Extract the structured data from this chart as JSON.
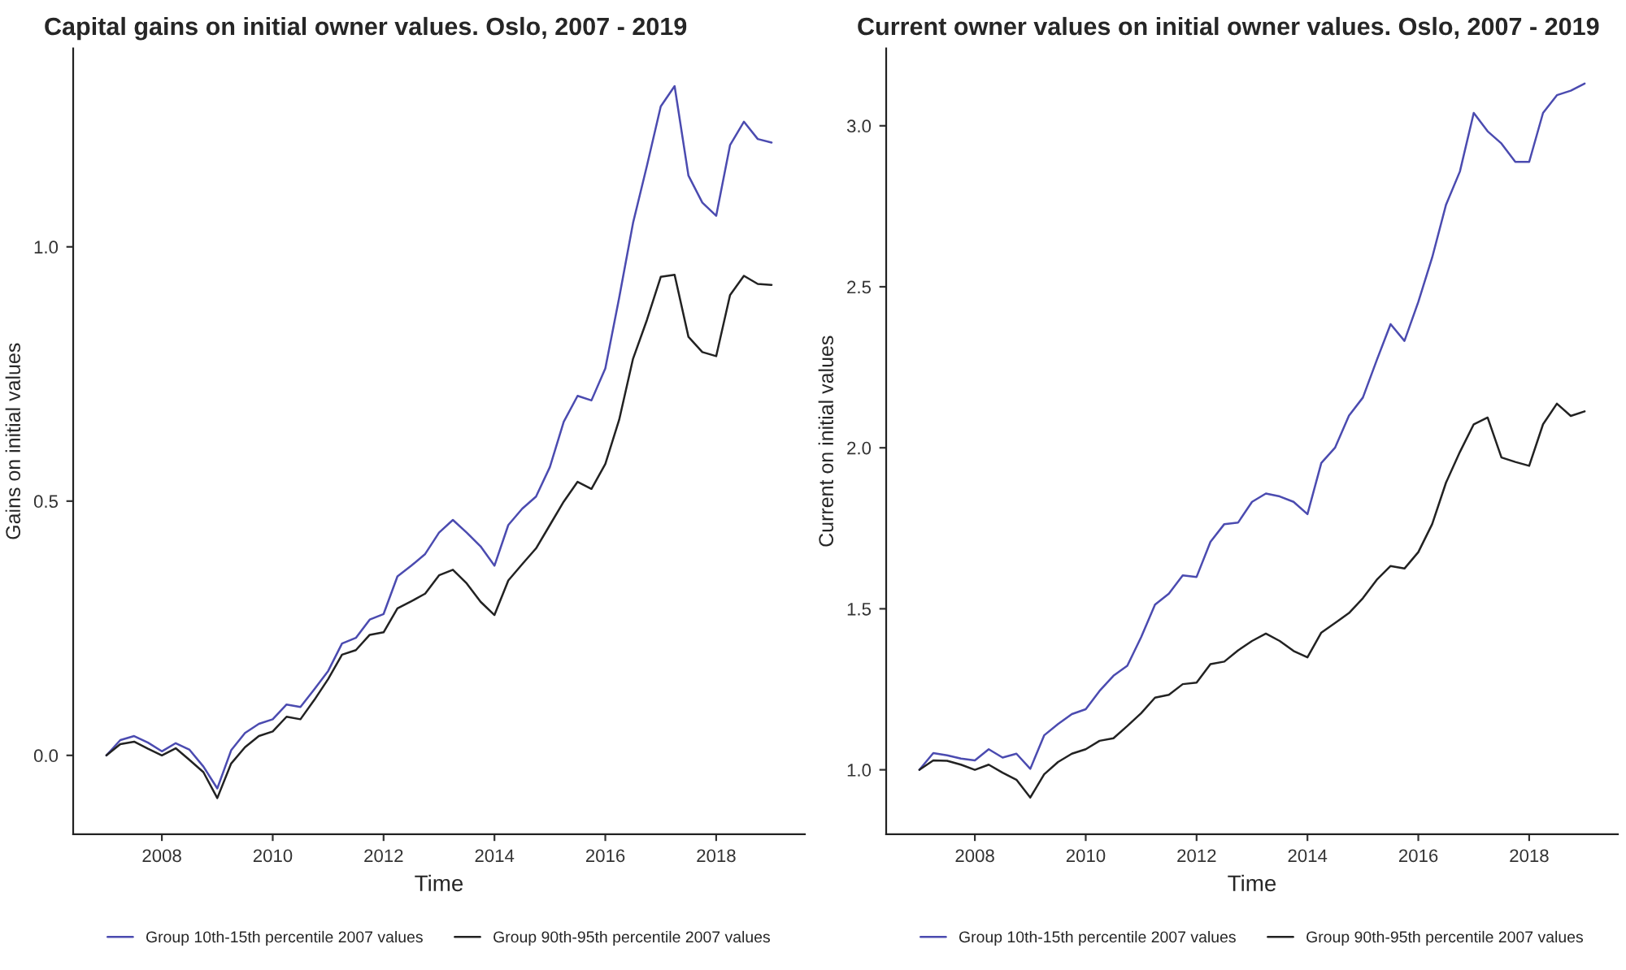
{
  "chart_data": [
    {
      "type": "line",
      "title": "Capital gains on initial owner values. Oslo, 2007 - 2019",
      "xlabel": "Time",
      "ylabel": "Gains on initial values",
      "x": [
        2007.0,
        2007.25,
        2007.5,
        2007.75,
        2008.0,
        2008.25,
        2008.5,
        2008.75,
        2009.0,
        2009.25,
        2009.5,
        2009.75,
        2010.0,
        2010.25,
        2010.5,
        2010.75,
        2011.0,
        2011.25,
        2011.5,
        2011.75,
        2012.0,
        2012.25,
        2012.5,
        2012.75,
        2013.0,
        2013.25,
        2013.5,
        2013.75,
        2014.0,
        2014.25,
        2014.5,
        2014.75,
        2015.0,
        2015.25,
        2015.5,
        2015.75,
        2016.0,
        2016.25,
        2016.5,
        2016.75,
        2017.0,
        2017.25,
        2017.5,
        2017.75,
        2018.0,
        2018.25,
        2018.5,
        2018.75,
        2019.0
      ],
      "series": [
        {
          "name": "Group 10th-15th percentile 2007 values",
          "color": "#4b4bb0",
          "values": [
            0,
            0.03,
            0.038,
            0.025,
            0.008,
            0.024,
            0.011,
            -0.022,
            -0.065,
            0.01,
            0.044,
            0.062,
            0.071,
            0.1,
            0.095,
            0.13,
            0.166,
            0.22,
            0.231,
            0.267,
            0.278,
            0.352,
            0.373,
            0.396,
            0.438,
            0.463,
            0.438,
            0.411,
            0.373,
            0.453,
            0.485,
            0.509,
            0.567,
            0.656,
            0.707,
            0.698,
            0.761,
            0.9,
            1.047,
            1.159,
            1.276,
            1.316,
            1.14,
            1.087,
            1.061,
            1.2,
            1.246,
            1.212,
            1.205
          ]
        },
        {
          "name": "Group 90th-95th percentile 2007 values",
          "color": "#222222",
          "values": [
            0,
            0.022,
            0.027,
            0.013,
            0,
            0.014,
            -0.009,
            -0.033,
            -0.084,
            -0.016,
            0.016,
            0.038,
            0.047,
            0.076,
            0.071,
            0.109,
            0.15,
            0.198,
            0.207,
            0.237,
            0.242,
            0.289,
            0.303,
            0.318,
            0.354,
            0.365,
            0.338,
            0.302,
            0.276,
            0.344,
            0.376,
            0.407,
            0.453,
            0.499,
            0.538,
            0.524,
            0.573,
            0.66,
            0.78,
            0.856,
            0.941,
            0.945,
            0.823,
            0.793,
            0.785,
            0.905,
            0.943,
            0.927,
            0.925
          ]
        }
      ],
      "xlim": [
        2006.4,
        2019.6
      ],
      "xticks": [
        2008,
        2010,
        2012,
        2014,
        2016,
        2018
      ],
      "ylim": [
        -0.155,
        1.39
      ],
      "yticks": [
        {
          "value": 0,
          "label": "0.0"
        },
        0.5,
        {
          "value": 1,
          "label": "1.0"
        }
      ],
      "grid": false,
      "legend": "bottom",
      "line_style": "solid"
    },
    {
      "type": "line",
      "title": "Current owner values on initial owner values. Oslo, 2007 - 2019",
      "xlabel": "Time",
      "ylabel": "Current on initial values",
      "x": [
        2007.0,
        2007.25,
        2007.5,
        2007.75,
        2008.0,
        2008.25,
        2008.5,
        2008.75,
        2009.0,
        2009.25,
        2009.5,
        2009.75,
        2010.0,
        2010.25,
        2010.5,
        2010.75,
        2011.0,
        2011.25,
        2011.5,
        2011.75,
        2012.0,
        2012.25,
        2012.5,
        2012.75,
        2013.0,
        2013.25,
        2013.5,
        2013.75,
        2014.0,
        2014.25,
        2014.5,
        2014.75,
        2015.0,
        2015.25,
        2015.5,
        2015.75,
        2016.0,
        2016.25,
        2016.5,
        2016.75,
        2017.0,
        2017.25,
        2017.5,
        2017.75,
        2018.0,
        2018.25,
        2018.5,
        2018.75,
        2019.0
      ],
      "series": [
        {
          "name": "Group 10th-15th percentile 2007 values",
          "color": "#4b4bb0",
          "values": [
            1.0,
            1.052,
            1.045,
            1.035,
            1.029,
            1.064,
            1.038,
            1.05,
            1.003,
            1.107,
            1.142,
            1.173,
            1.188,
            1.245,
            1.292,
            1.323,
            1.412,
            1.513,
            1.547,
            1.604,
            1.599,
            1.708,
            1.763,
            1.768,
            1.832,
            1.858,
            1.849,
            1.832,
            1.794,
            1.953,
            2.001,
            2.1,
            2.156,
            2.272,
            2.384,
            2.332,
            2.453,
            2.591,
            2.755,
            2.858,
            3.04,
            2.983,
            2.945,
            2.888,
            2.888,
            3.04,
            3.095,
            3.109,
            3.131
          ]
        },
        {
          "name": "Group 90th-95th percentile 2007 values",
          "color": "#222222",
          "values": [
            1.0,
            1.029,
            1.028,
            1.016,
            1.0,
            1.016,
            0.991,
            0.969,
            0.914,
            0.986,
            1.024,
            1.05,
            1.064,
            1.09,
            1.098,
            1.136,
            1.176,
            1.224,
            1.233,
            1.266,
            1.271,
            1.328,
            1.336,
            1.371,
            1.4,
            1.423,
            1.4,
            1.369,
            1.349,
            1.426,
            1.456,
            1.487,
            1.533,
            1.59,
            1.633,
            1.625,
            1.676,
            1.763,
            1.892,
            1.987,
            2.073,
            2.094,
            1.97,
            1.956,
            1.944,
            2.073,
            2.137,
            2.099,
            2.113
          ]
        }
      ],
      "xlim": [
        2006.4,
        2019.6
      ],
      "xticks": [
        2008,
        2010,
        2012,
        2014,
        2016,
        2018
      ],
      "ylim": [
        0.8,
        3.24
      ],
      "yticks": [
        {
          "value": 1,
          "label": "1.0"
        },
        1.5,
        {
          "value": 2,
          "label": "2.0"
        },
        2.5,
        {
          "value": 3,
          "label": "3.0"
        }
      ],
      "grid": false,
      "legend": "bottom",
      "line_style": "solid"
    }
  ]
}
